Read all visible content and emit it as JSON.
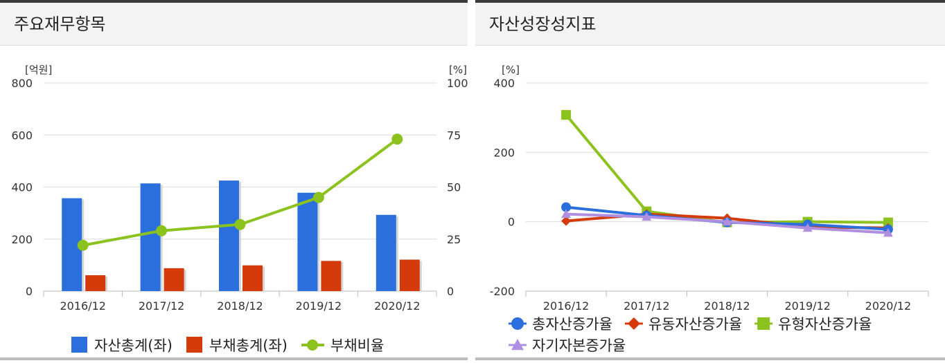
{
  "panels": [
    {
      "title": "주요재무항목"
    },
    {
      "title": "자산성장성지표"
    }
  ],
  "chart_data": [
    {
      "type": "bar",
      "title": "주요재무항목",
      "categories": [
        "2016/12",
        "2017/12",
        "2018/12",
        "2019/12",
        "2020/12"
      ],
      "left_axis": {
        "unit": "[억원]",
        "ylim": [
          0,
          800
        ],
        "ticks": [
          0,
          200,
          400,
          600,
          800
        ]
      },
      "right_axis": {
        "unit": "[%]",
        "ylim": [
          0,
          100
        ],
        "ticks": [
          0,
          25,
          50,
          75,
          100
        ]
      },
      "series": [
        {
          "name": "자산총계(좌)",
          "type": "bar",
          "axis": "left",
          "color": "#2a6fdb",
          "values": [
            357,
            414,
            425,
            378,
            293
          ]
        },
        {
          "name": "부채총계(좌)",
          "type": "bar",
          "axis": "left",
          "color": "#d43a0a",
          "values": [
            61,
            88,
            99,
            116,
            121
          ]
        },
        {
          "name": "부채비율",
          "type": "line",
          "axis": "right",
          "color": "#8cc21e",
          "values": [
            22,
            29,
            32,
            45,
            73
          ]
        }
      ],
      "grid": true,
      "legend_position": "bottom"
    },
    {
      "type": "line",
      "title": "자산성장성지표",
      "categories": [
        "2016/12",
        "2017/12",
        "2018/12",
        "2019/12",
        "2020/12"
      ],
      "y_axis": {
        "unit": "[%]",
        "ylim": [
          -200,
          400
        ],
        "ticks": [
          -200,
          0,
          200,
          400
        ]
      },
      "series": [
        {
          "name": "총자산증가율",
          "marker": "circle",
          "color": "#2a6fdb",
          "values": [
            42,
            18,
            -2,
            -8,
            -22
          ]
        },
        {
          "name": "유동자산증가율",
          "marker": "diamond",
          "color": "#d43a0a",
          "values": [
            2,
            22,
            10,
            -15,
            -18
          ]
        },
        {
          "name": "유형자산증가율",
          "marker": "square",
          "color": "#8cc21e",
          "values": [
            308,
            30,
            -2,
            0,
            -2
          ]
        },
        {
          "name": "자기자본증가율",
          "marker": "triangle",
          "color": "#b08fe0",
          "values": [
            22,
            14,
            0,
            -18,
            -32
          ]
        }
      ],
      "grid": true,
      "legend_position": "bottom"
    }
  ]
}
